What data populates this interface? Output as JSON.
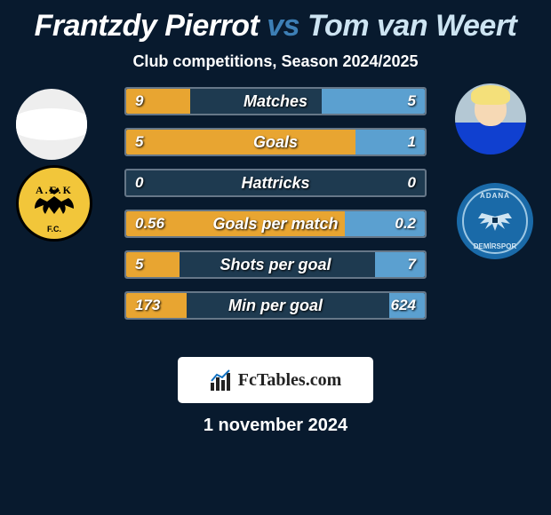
{
  "title": {
    "p1": "Frantzdy Pierrot",
    "vs": "vs",
    "p2": "Tom van Weert"
  },
  "subtitle": "Club competitions, Season 2024/2025",
  "stats": [
    {
      "label": "Matches",
      "lv": "9",
      "rv": "5",
      "lw": 72,
      "rw": 116
    },
    {
      "label": "Goals",
      "lv": "5",
      "rv": "1",
      "lw": 258,
      "rw": 78
    },
    {
      "label": "Hattricks",
      "lv": "0",
      "rv": "0",
      "lw": 0,
      "rw": 0
    },
    {
      "label": "Goals per match",
      "lv": "0.56",
      "rv": "0.2",
      "lw": 246,
      "rw": 90
    },
    {
      "label": "Shots per goal",
      "lv": "5",
      "rv": "7",
      "lw": 60,
      "rw": 56
    },
    {
      "label": "Min per goal",
      "lv": "173",
      "rv": "624",
      "lw": 68,
      "rw": 40
    }
  ],
  "colors": {
    "left": "#e8a531",
    "right": "#5ba0d0",
    "bg": "#081a2e"
  },
  "watermark": "FcTables.com",
  "date": "1 november 2024",
  "club1": "A.E.K",
  "club1_fc": "F.C.",
  "club2_top": "ADANA",
  "club2_bottom": "DEMİRSPOR"
}
